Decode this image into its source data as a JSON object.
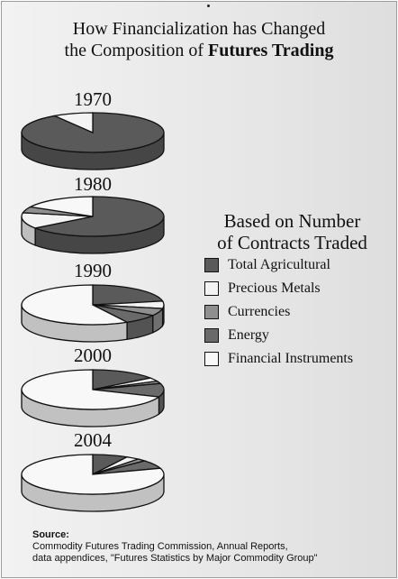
{
  "title": {
    "line1": "How Financialization has Changed",
    "line2_prefix": "the Composition of ",
    "line2_bold": "Futures Trading"
  },
  "legend": {
    "title_line1": "Based on Number",
    "title_line2": "of Contracts Traded",
    "items": [
      {
        "label": "Total Agricultural",
        "color": "#5a5a5a"
      },
      {
        "label": "Precious Metals",
        "color": "#f3f3f3"
      },
      {
        "label": "Currencies",
        "color": "#8f8f8f"
      },
      {
        "label": "Energy",
        "color": "#6a6a6a"
      },
      {
        "label": "Financial Instruments",
        "color": "#f8f8f8"
      }
    ]
  },
  "chart_data": {
    "type": "pie",
    "unit": "share of contracts traded (%)",
    "series_order": [
      "Total Agricultural",
      "Precious Metals",
      "Currencies",
      "Energy",
      "Financial Instruments"
    ],
    "pies": [
      {
        "label": "1970",
        "values": [
          91,
          9,
          0,
          0,
          0
        ]
      },
      {
        "label": "1980",
        "values": [
          65,
          13,
          5,
          0,
          17
        ]
      },
      {
        "label": "1990",
        "values": [
          22,
          6,
          6,
          8,
          58
        ]
      },
      {
        "label": "2000",
        "values": [
          15,
          3,
          2,
          11,
          69
        ]
      },
      {
        "label": "2004",
        "values": [
          8,
          3,
          2,
          7,
          80
        ]
      }
    ]
  },
  "source": {
    "heading": "Source:",
    "line1": "Commodity Futures Trading Commission, Annual Reports,",
    "line2": "data appendices, \"Futures Statistics by Major Commodity Group\""
  }
}
